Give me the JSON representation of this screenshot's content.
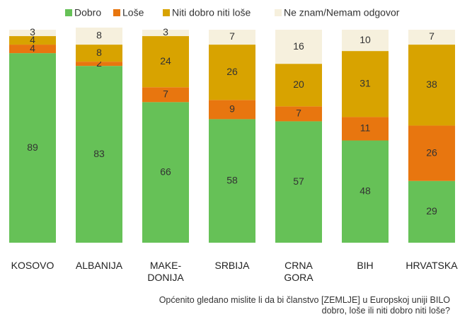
{
  "chart_data": {
    "type": "stacked_bar",
    "categories": [
      "KOSOVO",
      "ALBANIJA",
      "MAKE-\nDONIJA",
      "SRBIJA",
      "CRNA\nGORA",
      "BIH",
      "HRVATSKA"
    ],
    "series": [
      {
        "name": "Dobro",
        "color": "#66c157",
        "values": [
          89,
          83,
          66,
          58,
          57,
          48,
          29
        ]
      },
      {
        "name": "Loše",
        "color": "#e8760f",
        "values": [
          4,
          2,
          7,
          9,
          7,
          11,
          26
        ]
      },
      {
        "name": "Niti dobro niti loše",
        "color": "#d8a300",
        "values": [
          4,
          8,
          24,
          26,
          20,
          31,
          38
        ]
      },
      {
        "name": "Ne znam/Nemam odgovor",
        "color": "#f6f0dd",
        "values": [
          3,
          8,
          3,
          7,
          16,
          10,
          7
        ]
      }
    ],
    "ylim": [
      0,
      100
    ],
    "note": "Općenito gledano mislite li da bi članstvo [ZEMLJE] u Europskoj uniji BILO\ndobro, loše ili niti dobro niti loše?"
  }
}
